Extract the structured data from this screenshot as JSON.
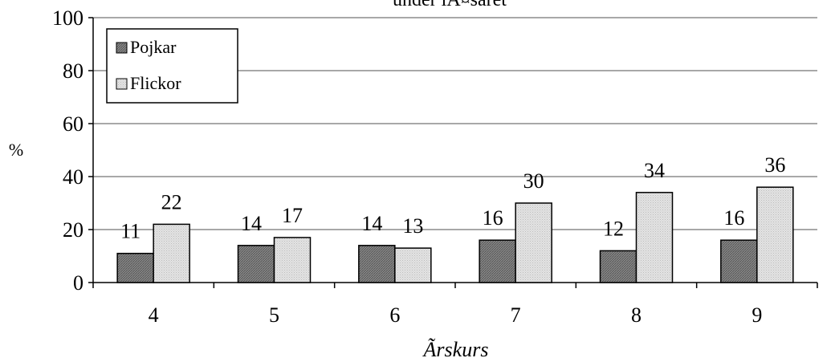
{
  "chart_data": {
    "type": "bar",
    "title": "under lÃ¤saret",
    "xlabel": "Ãrskurs",
    "ylabel": "%",
    "categories": [
      "4",
      "5",
      "6",
      "7",
      "8",
      "9"
    ],
    "ylim": [
      0,
      100
    ],
    "yticks": [
      "0",
      "20",
      "40",
      "60",
      "80",
      "100"
    ],
    "grid": true,
    "legend_position": "top-left",
    "series": [
      {
        "name": "Pojkar",
        "values": [
          11,
          14,
          14,
          16,
          12,
          16
        ],
        "color": "#6f6f6f"
      },
      {
        "name": "Flickor",
        "values": [
          22,
          17,
          13,
          30,
          34,
          36
        ],
        "color": "#d9d9d9"
      }
    ]
  }
}
